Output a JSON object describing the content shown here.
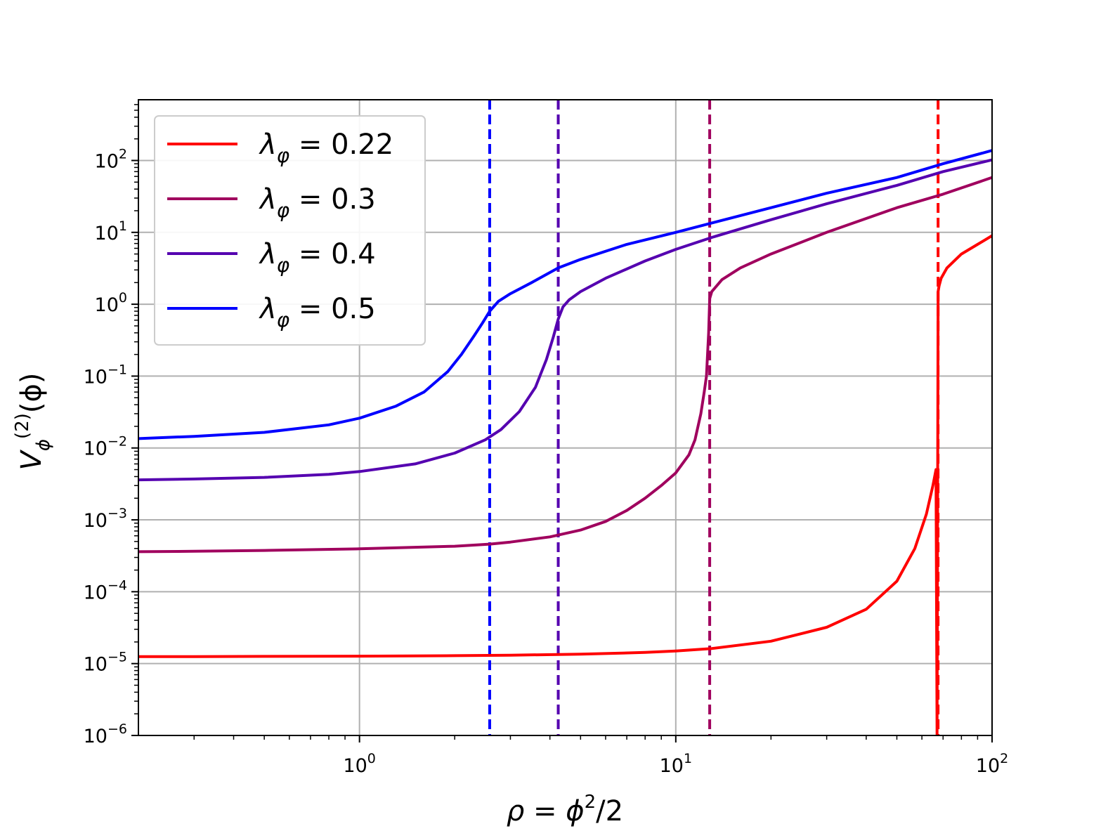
{
  "chart_data": {
    "type": "line",
    "xlabel": {
      "prefix": "ρ = ",
      "var": "ϕ",
      "sup": "2",
      "suffix": "/2"
    },
    "ylabel": {
      "var": "V",
      "sub": "ϕ",
      "sup": "(2)",
      "arg": "(ϕ)"
    },
    "xscale": "log",
    "yscale": "log",
    "xlim": [
      0.2,
      100
    ],
    "ylim": [
      1e-06,
      700
    ],
    "grid": true,
    "legend_position": "upper-left",
    "x_ticks": [
      {
        "base": "10",
        "exp": "0",
        "value": 1
      },
      {
        "base": "10",
        "exp": "1",
        "value": 10
      },
      {
        "base": "10",
        "exp": "2",
        "value": 100
      }
    ],
    "y_ticks": [
      {
        "base": "10",
        "exp": "−6",
        "value": 1e-06
      },
      {
        "base": "10",
        "exp": "−5",
        "value": 1e-05
      },
      {
        "base": "10",
        "exp": "−4",
        "value": 0.0001
      },
      {
        "base": "10",
        "exp": "−3",
        "value": 0.001
      },
      {
        "base": "10",
        "exp": "−2",
        "value": 0.01
      },
      {
        "base": "10",
        "exp": "−1",
        "value": 0.1
      },
      {
        "base": "10",
        "exp": "0",
        "value": 1
      },
      {
        "base": "10",
        "exp": "1",
        "value": 10
      },
      {
        "base": "10",
        "exp": "2",
        "value": 100
      }
    ],
    "series": [
      {
        "name": "λφ = 0.22",
        "legend": {
          "sym": "λ",
          "sub": "φ",
          "rest": " = 0.22"
        },
        "color": "#ff0000",
        "vline_x": 67.5,
        "x": [
          0.2,
          0.3,
          0.5,
          1.0,
          2.0,
          3.0,
          5.0,
          8.0,
          10.0,
          13.0,
          20.0,
          30.0,
          40.0,
          50.0,
          57.0,
          62.0,
          65.0,
          66.5,
          67.0,
          67.0,
          67.5,
          68.0,
          69.0,
          72.0,
          80.0,
          90.0,
          100.0
        ],
        "y": [
          1.25e-05,
          1.25e-05,
          1.26e-05,
          1.27e-05,
          1.29e-05,
          1.31e-05,
          1.35e-05,
          1.43e-05,
          1.5e-05,
          1.62e-05,
          2.05e-05,
          3.2e-05,
          5.7e-05,
          0.00014,
          0.0004,
          0.0012,
          0.003,
          0.005,
          1e-06,
          1e-06,
          1.5,
          1.8,
          2.3,
          3.2,
          5.0,
          6.8,
          9.0
        ]
      },
      {
        "name": "λφ = 0.3",
        "legend": {
          "sym": "λ",
          "sub": "φ",
          "rest": " = 0.3"
        },
        "color": "#a0005e",
        "vline_x": 12.8,
        "x": [
          0.2,
          0.3,
          0.5,
          1.0,
          2.0,
          2.58,
          3.0,
          4.0,
          5.0,
          6.0,
          7.0,
          8.0,
          9.0,
          10.0,
          11.0,
          11.5,
          12.0,
          12.3,
          12.5,
          12.7,
          12.8,
          13.0,
          14.0,
          16.0,
          20.0,
          30.0,
          50.0,
          70.0,
          100.0
        ],
        "y": [
          0.00036,
          0.000365,
          0.000375,
          0.000395,
          0.00043,
          0.00046,
          0.00049,
          0.00058,
          0.00072,
          0.00095,
          0.00135,
          0.002,
          0.003,
          0.0045,
          0.008,
          0.013,
          0.03,
          0.06,
          0.1,
          0.4,
          1.2,
          1.5,
          2.2,
          3.2,
          5.0,
          10.0,
          22.0,
          34.0,
          58.0
        ]
      },
      {
        "name": "λφ = 0.4",
        "legend": {
          "sym": "λ",
          "sub": "φ",
          "rest": " = 0.4"
        },
        "color": "#5500b0",
        "vline_x": 4.25,
        "x": [
          0.2,
          0.3,
          0.5,
          0.8,
          1.0,
          1.5,
          2.0,
          2.5,
          2.8,
          3.2,
          3.6,
          3.9,
          4.1,
          4.25,
          4.4,
          4.6,
          5.0,
          6.0,
          8.0,
          10.0,
          13.0,
          20.0,
          30.0,
          50.0,
          70.0,
          100.0
        ],
        "y": [
          0.0036,
          0.0037,
          0.0039,
          0.0043,
          0.0047,
          0.006,
          0.0085,
          0.013,
          0.018,
          0.032,
          0.07,
          0.17,
          0.35,
          0.62,
          0.92,
          1.15,
          1.5,
          2.3,
          4.0,
          5.8,
          8.5,
          15.0,
          25.0,
          45.0,
          70.0,
          102.0
        ]
      },
      {
        "name": "λφ = 0.5",
        "legend": {
          "sym": "λ",
          "sub": "φ",
          "rest": " = 0.5"
        },
        "color": "#0000ff",
        "vline_x": 2.58,
        "x": [
          0.2,
          0.3,
          0.5,
          0.8,
          1.0,
          1.3,
          1.6,
          1.9,
          2.1,
          2.3,
          2.45,
          2.58,
          2.75,
          3.0,
          3.5,
          4.25,
          5.0,
          7.0,
          10.0,
          13.0,
          20.0,
          30.0,
          50.0,
          70.0,
          100.0
        ],
        "y": [
          0.0135,
          0.0145,
          0.0165,
          0.021,
          0.026,
          0.038,
          0.06,
          0.115,
          0.2,
          0.36,
          0.55,
          0.8,
          1.1,
          1.4,
          2.0,
          3.2,
          4.2,
          6.8,
          10.0,
          13.5,
          22.0,
          35.0,
          58.0,
          90.0,
          138.0
        ]
      }
    ]
  }
}
